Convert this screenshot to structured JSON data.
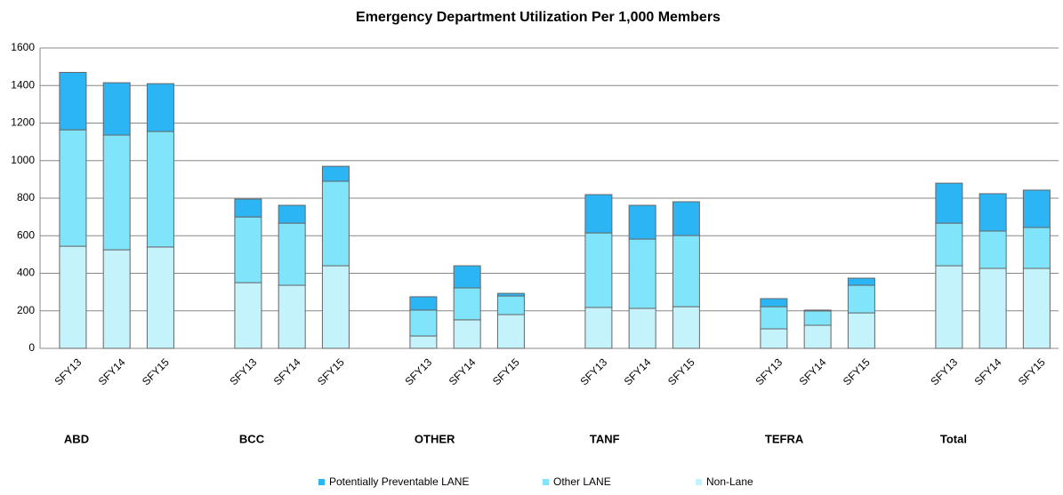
{
  "chart_data": {
    "type": "stacked_bar",
    "title": "Emergency Department Utilization Per 1,000 Members",
    "groups": [
      "ABD",
      "BCC",
      "OTHER",
      "TANF",
      "TEFRA",
      "Total"
    ],
    "categories": [
      "SFY13",
      "SFY14",
      "SFY15",
      "SFY13",
      "SFY14",
      "SFY15",
      "SFY13",
      "SFY14",
      "SFY15",
      "SFY13",
      "SFY14",
      "SFY15",
      "SFY13",
      "SFY14",
      "SFY15",
      "SFY13",
      "SFY14",
      "SFY15"
    ],
    "series": [
      {
        "name": "Potentially Preventable LANE",
        "color": "#2bb5f5",
        "values": [
          306,
          279,
          255,
          95,
          95,
          80,
          71,
          118,
          14,
          204,
          180,
          180,
          43,
          5,
          38,
          213,
          199,
          199
        ]
      },
      {
        "name": "Other LANE",
        "color": "#80e5fb",
        "values": [
          620,
          611,
          615,
          350,
          331,
          450,
          138,
          170,
          99,
          397,
          369,
          379,
          118,
          76,
          147,
          227,
          199,
          218
        ]
      },
      {
        "name": "Non-Lane",
        "color": "#c5f3fb",
        "values": [
          544,
          525,
          540,
          350,
          336,
          440,
          66,
          152,
          180,
          218,
          213,
          222,
          104,
          123,
          189,
          440,
          426,
          426
        ]
      }
    ],
    "ylim": [
      0,
      1600
    ],
    "yticks": [
      0,
      200,
      400,
      600,
      800,
      1000,
      1200,
      1400,
      1600
    ],
    "grid": true,
    "legend": "bottom"
  }
}
